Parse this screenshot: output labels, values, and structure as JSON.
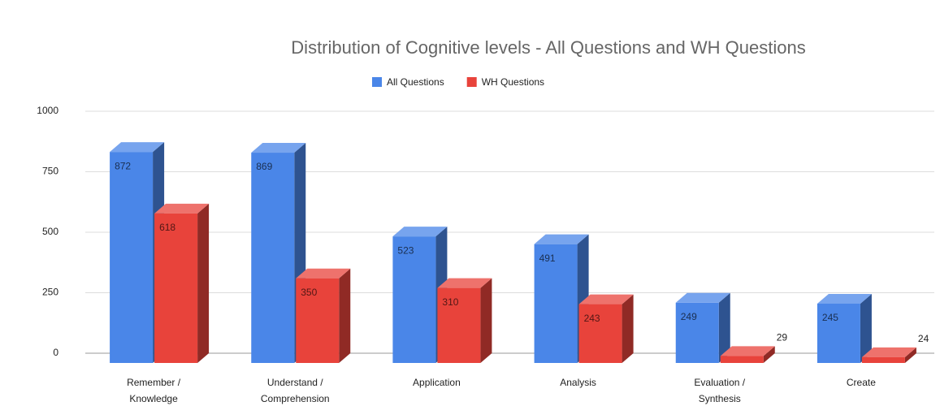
{
  "chart_data": {
    "type": "bar3d",
    "title": "Distribution of Cognitive levels - All Questions and WH Questions",
    "categories": [
      "Remember / Knowledge",
      "Understand / Comprehension",
      "Application",
      "Analysis",
      "Evaluation / Synthesis",
      "Create"
    ],
    "series": [
      {
        "name": "All Questions",
        "color": "#4a86e8",
        "values": [
          872,
          869,
          523,
          491,
          249,
          245
        ]
      },
      {
        "name": "WH Questions",
        "color": "#e8433b",
        "values": [
          618,
          350,
          310,
          243,
          29,
          24
        ]
      }
    ],
    "ylim": [
      0,
      1000
    ],
    "yticks": [
      0,
      250,
      500,
      750,
      1000
    ],
    "grid": true,
    "legend": "top"
  }
}
